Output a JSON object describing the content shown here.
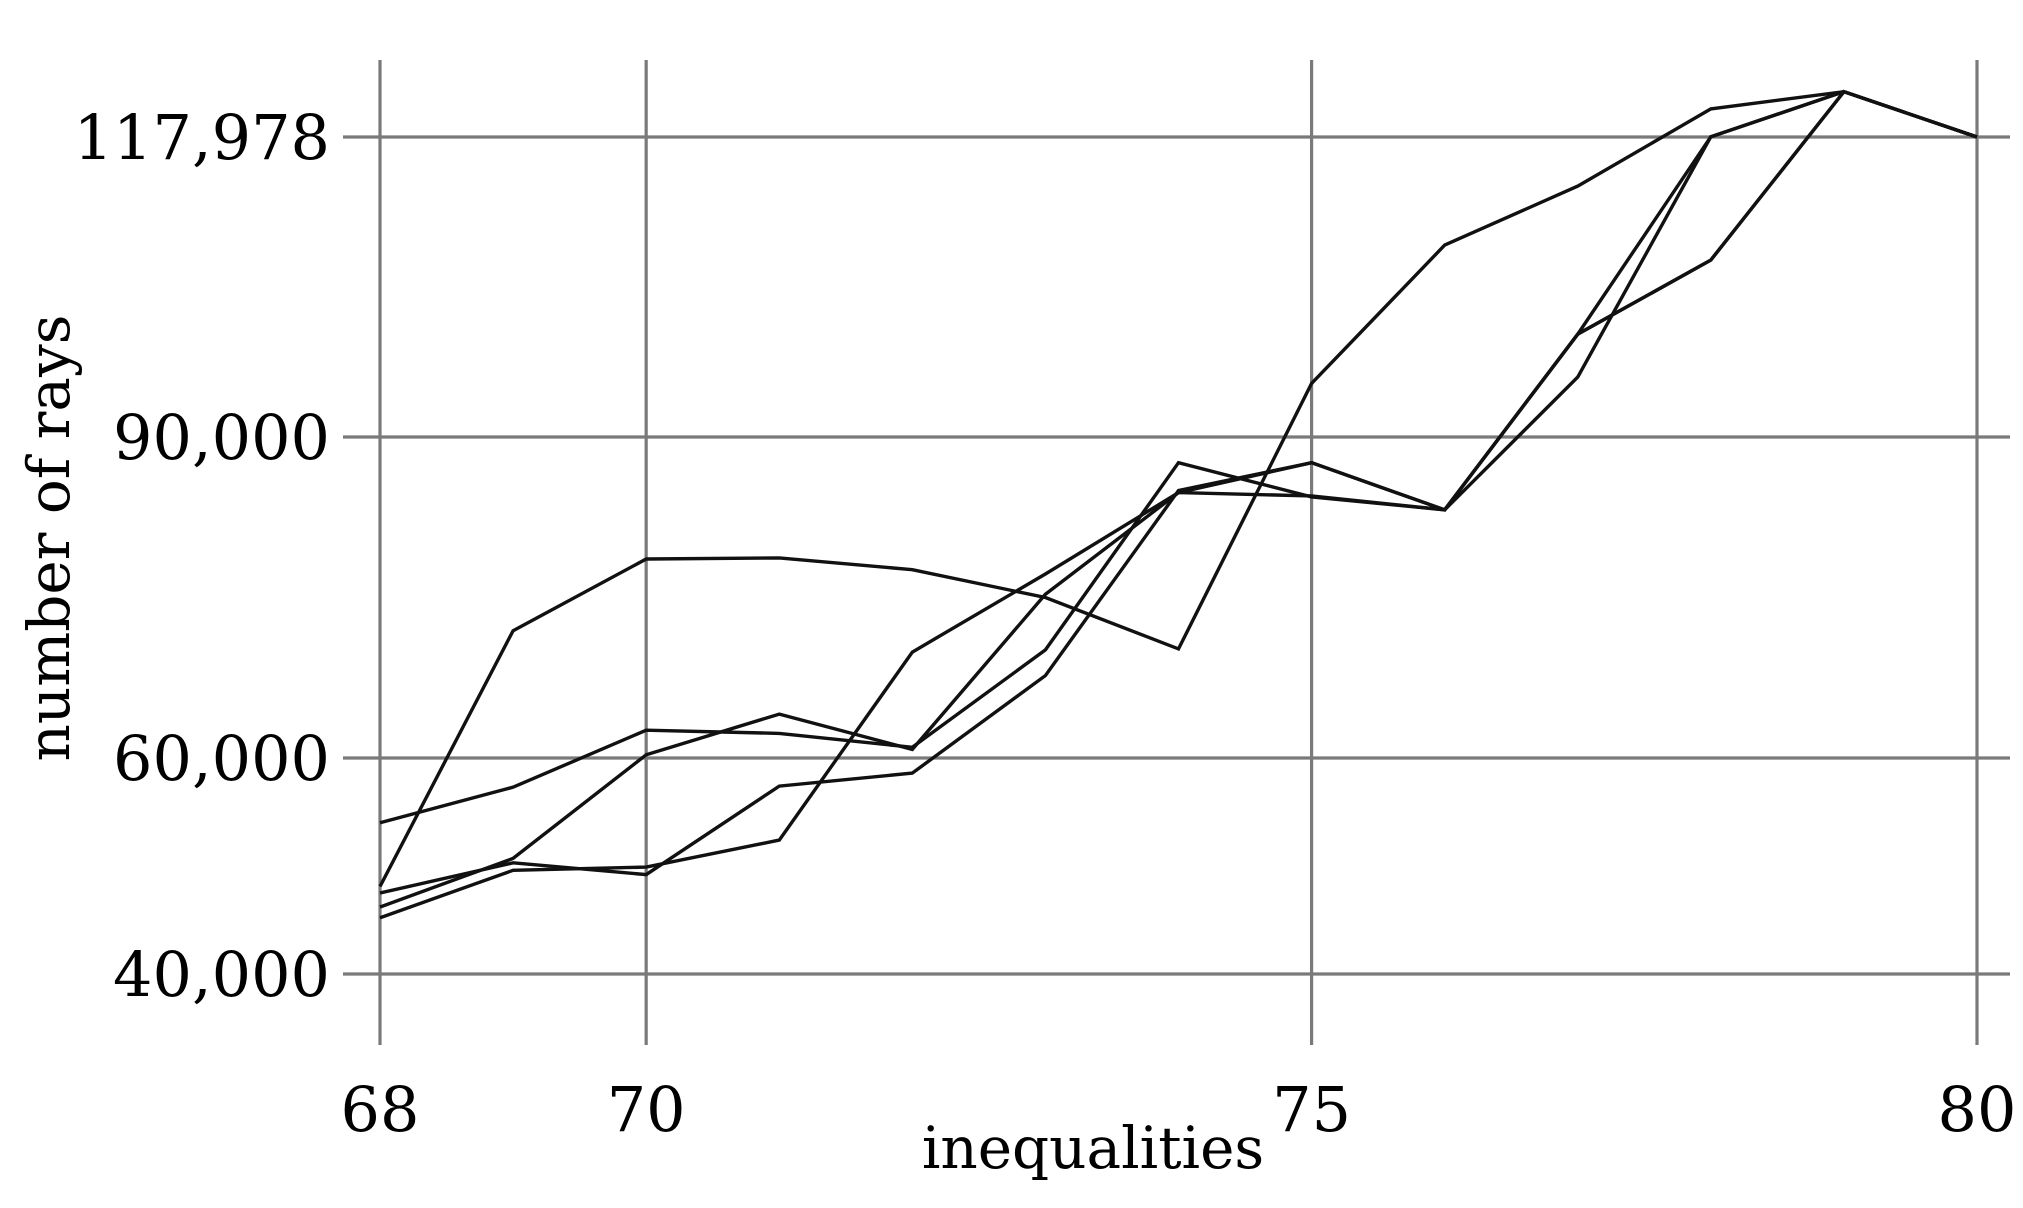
{
  "chart_data": {
    "type": "line",
    "title": "",
    "xlabel": "inequalities",
    "ylabel": "number of rays",
    "x": [
      68,
      69,
      70,
      71,
      72,
      73,
      74,
      75,
      76,
      77,
      78,
      79,
      80
    ],
    "xlim": [
      68,
      80
    ],
    "x_ticks": [
      68,
      70,
      75,
      80
    ],
    "x_tick_labels": [
      "68",
      "70",
      "75",
      "80"
    ],
    "ylim": [
      35000,
      125000
    ],
    "y_ticks": [
      40000,
      60000,
      90000,
      117978
    ],
    "y_tick_labels": [
      "40,000",
      "60,000",
      "90,000",
      "117,978"
    ],
    "grid": true,
    "legend": "none",
    "line_color": "#111111",
    "grid_color": "#7a7a7a",
    "series": [
      {
        "values": [
          54000,
          57300,
          62600,
          62300,
          61000,
          70100,
          87600,
          84400,
          83200,
          95600,
          118000,
          122200,
          117978
        ]
      },
      {
        "values": [
          48100,
          71900,
          78600,
          78700,
          77600,
          75000,
          70200,
          95000,
          107900,
          113400,
          120600,
          122200,
          117978
        ]
      },
      {
        "values": [
          47500,
          50300,
          49200,
          57400,
          58600,
          67700,
          85000,
          87600,
          83200,
          99600,
          106500,
          122200,
          117978
        ]
      },
      {
        "values": [
          46200,
          50700,
          60300,
          64100,
          60800,
          75300,
          84800,
          84500,
          83200,
          99600,
          118000,
          122200,
          117978
        ]
      },
      {
        "values": [
          45200,
          49600,
          49900,
          52400,
          69900,
          77200,
          84800,
          87600,
          83200,
          99600,
          106500,
          122200,
          117978
        ]
      }
    ]
  }
}
